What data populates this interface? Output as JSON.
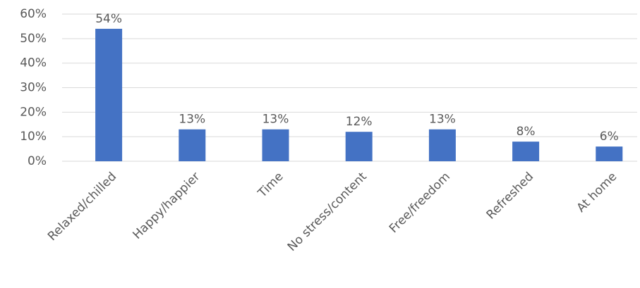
{
  "chart_data": {
    "type": "bar",
    "categories": [
      "Relaxed/chilled",
      "Happy/happier",
      "Time",
      "No stress/content",
      "Free/freedom",
      "Refreshed",
      "At home"
    ],
    "values": [
      54,
      13,
      13,
      12,
      13,
      8,
      6
    ],
    "value_labels": [
      "54%",
      "13%",
      "13%",
      "12%",
      "13%",
      "8%",
      "6%"
    ],
    "color": "#4472c4",
    "ylim": [
      0,
      60
    ],
    "yticks": [
      {
        "value": 0,
        "label": "0%"
      },
      {
        "value": 10,
        "label": "10%"
      },
      {
        "value": 20,
        "label": "20%"
      },
      {
        "value": 30,
        "label": "30%"
      },
      {
        "value": 40,
        "label": "40%"
      },
      {
        "value": 50,
        "label": "50%"
      },
      {
        "value": 60,
        "label": "60%"
      }
    ],
    "grid": true
  }
}
